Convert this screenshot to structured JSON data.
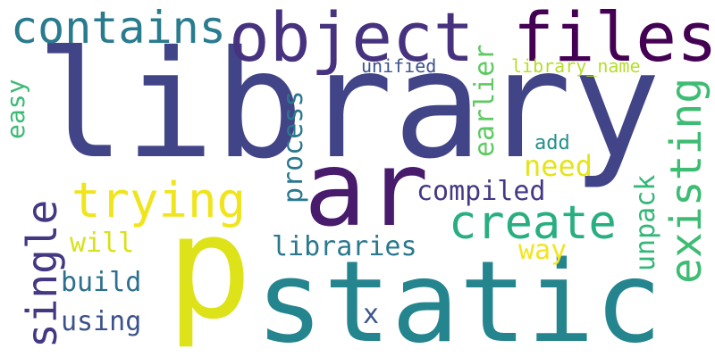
{
  "words": [
    {
      "text": "library",
      "color": "#414487"
    },
    {
      "text": "static",
      "color": "#25858e"
    },
    {
      "text": "ar",
      "color": "#481b6d"
    },
    {
      "text": "p",
      "color": "#dde318"
    },
    {
      "text": "object",
      "color": "#46327e"
    },
    {
      "text": "files",
      "color": "#440154"
    },
    {
      "text": "contains",
      "color": "#297b8e"
    },
    {
      "text": "trying",
      "color": "#f0e51c"
    },
    {
      "text": "create",
      "color": "#29af7f"
    },
    {
      "text": "existing",
      "color": "#3ebc73"
    },
    {
      "text": "single",
      "color": "#453882"
    },
    {
      "text": "compiled",
      "color": "#443983"
    },
    {
      "text": "libraries",
      "color": "#2a788e"
    },
    {
      "text": "need",
      "color": "#e5e419"
    },
    {
      "text": "will",
      "color": "#d8e219"
    },
    {
      "text": "way",
      "color": "#f2e51d"
    },
    {
      "text": "build",
      "color": "#2d708e"
    },
    {
      "text": "using",
      "color": "#3b528b"
    },
    {
      "text": "process",
      "color": "#2a788e"
    },
    {
      "text": "earlier",
      "color": "#5ec962"
    },
    {
      "text": "unpack",
      "color": "#35b779"
    },
    {
      "text": "easy",
      "color": "#3cbb75"
    },
    {
      "text": "unified",
      "color": "#3b528b"
    },
    {
      "text": "library_name",
      "color": "#b5de2b"
    },
    {
      "text": "add",
      "color": "#21918c"
    },
    {
      "text": "x",
      "color": "#3b528b"
    }
  ]
}
